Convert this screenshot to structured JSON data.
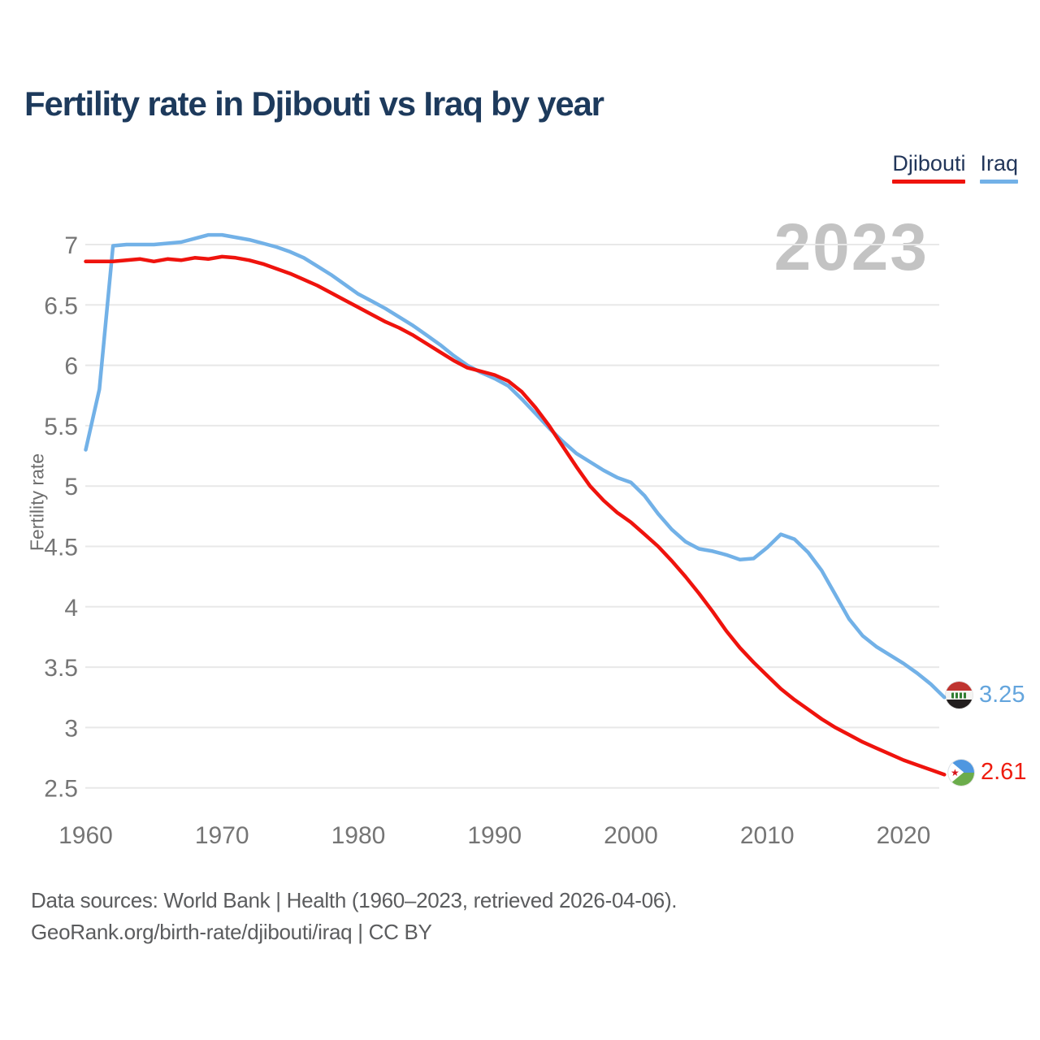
{
  "header": {
    "title": "Fertility rate in Djibouti vs Iraq by year"
  },
  "legend": {
    "items": [
      {
        "label": "Djibouti",
        "color": "#ef130d"
      },
      {
        "label": "Iraq",
        "color": "#72b1e7"
      }
    ]
  },
  "chart_data": {
    "type": "line",
    "title": "Fertility rate in Djibouti vs Iraq by year",
    "xlabel": "",
    "ylabel": "Fertility rate",
    "watermark": "2023",
    "grid": "horizontal",
    "legend_position": "top-right",
    "ylim": [
      2.3,
      7.15
    ],
    "xlim": [
      1960,
      2023
    ],
    "x_ticks": [
      1960,
      1970,
      1980,
      1990,
      2000,
      2010,
      2020
    ],
    "y_ticks": [
      7,
      6.5,
      6,
      5.5,
      5,
      4.5,
      4,
      3.5,
      3,
      2.5
    ],
    "x": [
      1960,
      1961,
      1962,
      1963,
      1964,
      1965,
      1966,
      1967,
      1968,
      1969,
      1970,
      1971,
      1972,
      1973,
      1974,
      1975,
      1976,
      1977,
      1978,
      1979,
      1980,
      1981,
      1982,
      1983,
      1984,
      1985,
      1986,
      1987,
      1988,
      1989,
      1990,
      1991,
      1992,
      1993,
      1994,
      1995,
      1996,
      1997,
      1998,
      1999,
      2000,
      2001,
      2002,
      2003,
      2004,
      2005,
      2006,
      2007,
      2008,
      2009,
      2010,
      2011,
      2012,
      2013,
      2014,
      2015,
      2016,
      2017,
      2018,
      2019,
      2020,
      2021,
      2022,
      2023
    ],
    "series": [
      {
        "name": "Djibouti",
        "color": "#ef130d",
        "values": [
          6.86,
          6.86,
          6.86,
          6.87,
          6.88,
          6.86,
          6.88,
          6.87,
          6.89,
          6.88,
          6.9,
          6.89,
          6.87,
          6.84,
          6.8,
          6.76,
          6.71,
          6.66,
          6.6,
          6.54,
          6.48,
          6.42,
          6.36,
          6.31,
          6.25,
          6.18,
          6.11,
          6.04,
          5.98,
          5.95,
          5.92,
          5.87,
          5.78,
          5.65,
          5.5,
          5.33,
          5.16,
          5.0,
          4.88,
          4.78,
          4.7,
          4.6,
          4.5,
          4.38,
          4.25,
          4.11,
          3.96,
          3.8,
          3.66,
          3.54,
          3.43,
          3.32,
          3.23,
          3.15,
          3.07,
          3.0,
          2.94,
          2.88,
          2.83,
          2.78,
          2.73,
          2.69,
          2.65,
          2.61
        ]
      },
      {
        "name": "Iraq",
        "color": "#72b1e7",
        "values": [
          5.3,
          5.8,
          6.99,
          7.0,
          7.0,
          7.0,
          7.01,
          7.02,
          7.05,
          7.08,
          7.08,
          7.06,
          7.04,
          7.01,
          6.98,
          6.94,
          6.89,
          6.82,
          6.75,
          6.67,
          6.59,
          6.53,
          6.47,
          6.4,
          6.33,
          6.25,
          6.17,
          6.08,
          6.0,
          5.94,
          5.89,
          5.83,
          5.72,
          5.6,
          5.48,
          5.37,
          5.27,
          5.2,
          5.13,
          5.07,
          5.03,
          4.92,
          4.77,
          4.64,
          4.54,
          4.48,
          4.46,
          4.43,
          4.39,
          4.4,
          4.49,
          4.6,
          4.56,
          4.45,
          4.3,
          4.1,
          3.9,
          3.76,
          3.67,
          3.6,
          3.53,
          3.45,
          3.36,
          3.25
        ]
      }
    ]
  },
  "end_labels": {
    "iraq": {
      "value": "3.25",
      "color": "#64a5dd",
      "flag": "iraq-flag-icon"
    },
    "djibouti": {
      "value": "2.61",
      "color": "#ee1c0f",
      "flag": "djibouti-flag-icon"
    }
  },
  "footer": {
    "line1": "Data sources: World Bank | Health (1960–2023, retrieved 2026-04-06).",
    "line2": "GeoRank.org/birth-rate/djibouti/iraq | CC BY"
  }
}
